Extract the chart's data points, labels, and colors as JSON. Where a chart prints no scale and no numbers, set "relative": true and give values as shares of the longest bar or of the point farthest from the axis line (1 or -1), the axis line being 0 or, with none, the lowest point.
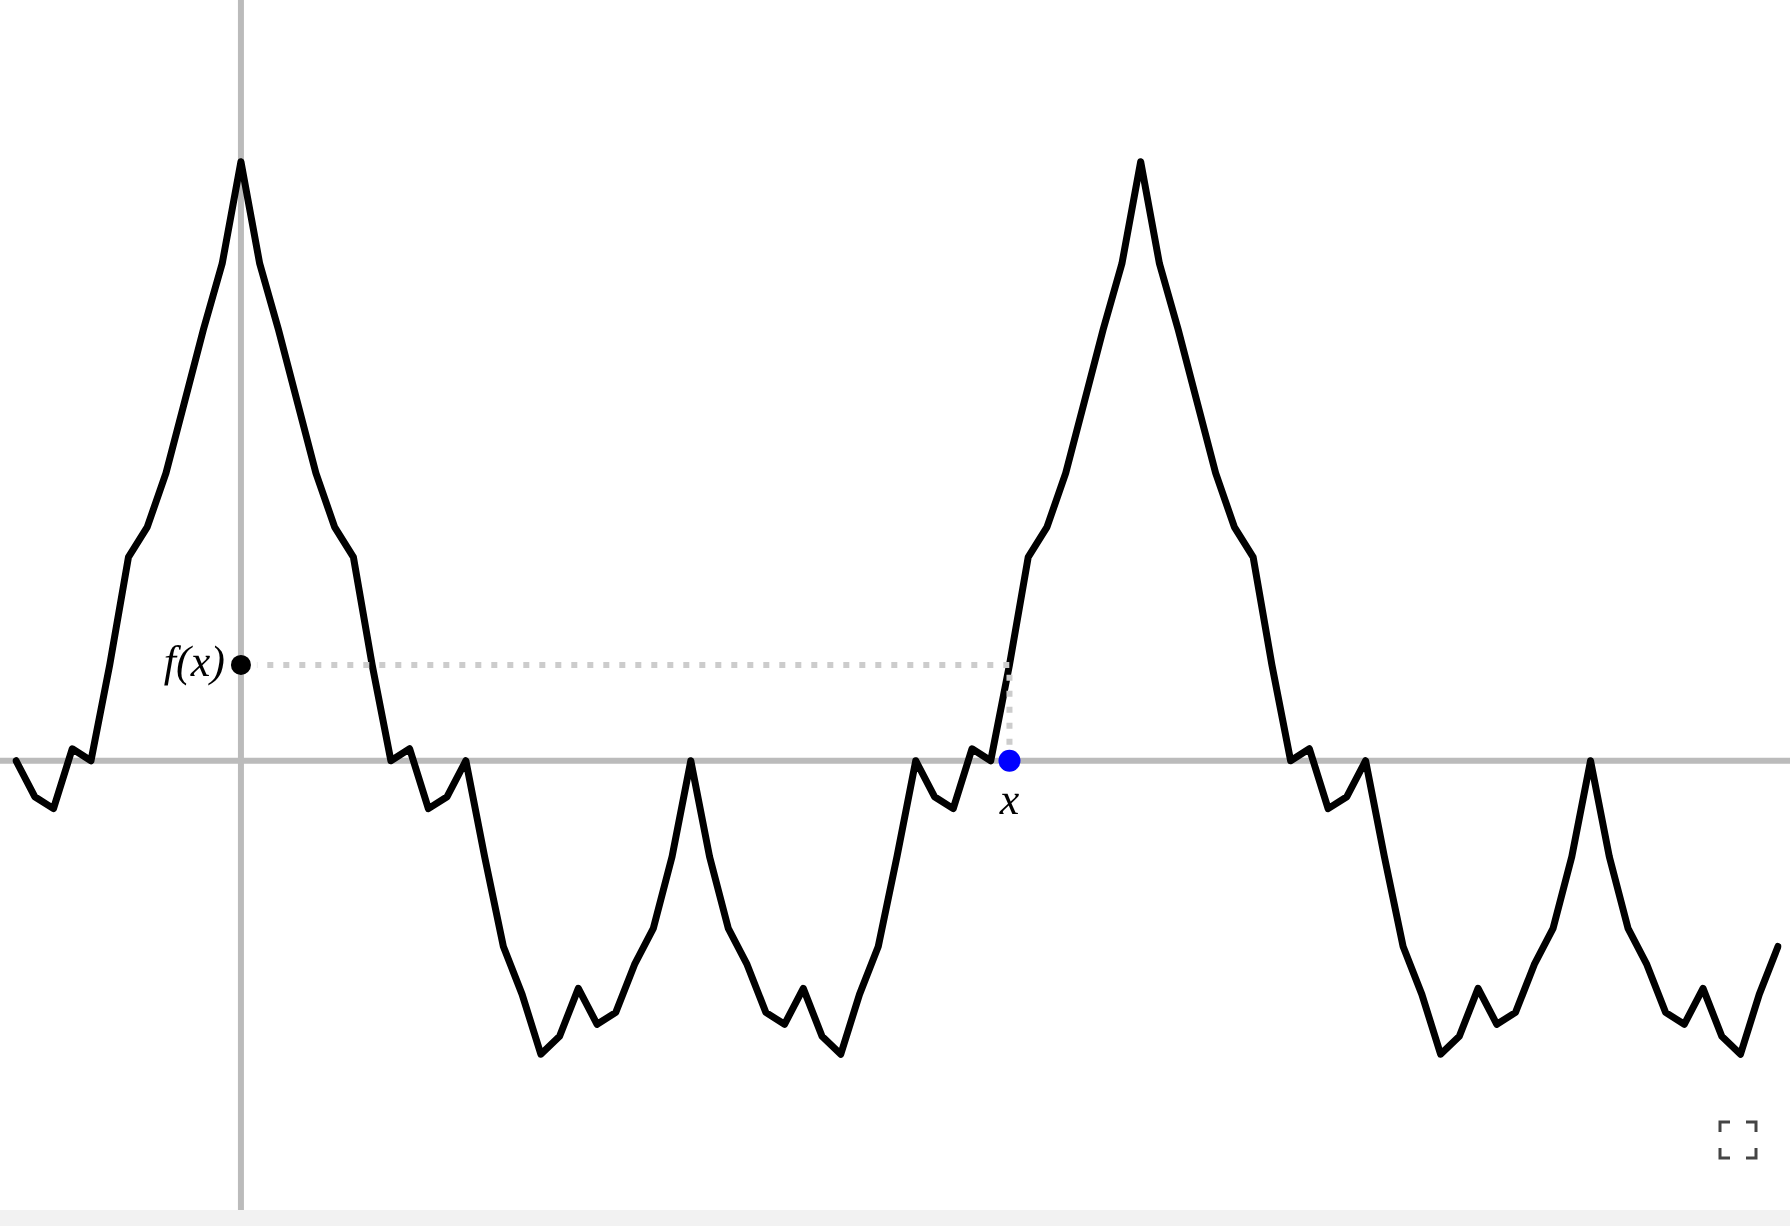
{
  "chart_data": {
    "type": "line",
    "relative": true,
    "categories": [
      null,
      null,
      null,
      null,
      null,
      null,
      null,
      null,
      null,
      null,
      null,
      null,
      null,
      null,
      null,
      null,
      null,
      null,
      null,
      null,
      null,
      null,
      null,
      null,
      null,
      null,
      null,
      null,
      null,
      null,
      null,
      null,
      null,
      null,
      null,
      null,
      null,
      null,
      null,
      null,
      null,
      null,
      null,
      null,
      null,
      null,
      null,
      null,
      null,
      null,
      null,
      null,
      null,
      null,
      null,
      null,
      null,
      null,
      null,
      null,
      null,
      null,
      null,
      null,
      null,
      null,
      null,
      null,
      null,
      null,
      null,
      null,
      null,
      null,
      null,
      null,
      null,
      null,
      null,
      null,
      null,
      null,
      null,
      null,
      null,
      null,
      null,
      null,
      null,
      null,
      null,
      null,
      null,
      null,
      null
    ],
    "annotations": [
      "f(x)",
      "x"
    ],
    "series": [
      {
        "color": "#000000",
        "marker": "none",
        "line_style": "solid",
        "values": [
          0,
          -0.06,
          -0.08,
          0.02,
          0,
          0.16,
          0.34,
          0.39,
          0.48,
          0.6,
          0.72,
          0.83,
          1,
          0.83,
          0.72,
          0.6,
          0.48,
          0.39,
          0.34,
          0.16,
          0,
          0.02,
          -0.08,
          -0.06,
          0,
          -0.16,
          -0.31,
          -0.39,
          -0.49,
          -0.46,
          -0.38,
          -0.44,
          -0.42,
          -0.34,
          -0.28,
          -0.16,
          0,
          -0.16,
          -0.28,
          -0.34,
          -0.42,
          -0.44,
          -0.38,
          -0.46,
          -0.49,
          -0.39,
          -0.31,
          -0.16,
          0,
          -0.06,
          -0.08,
          0.02,
          0,
          0.16,
          0.34,
          0.39,
          0.48,
          0.6,
          0.72,
          0.83,
          1,
          0.83,
          0.72,
          0.6,
          0.48,
          0.39,
          0.34,
          0.16,
          0,
          0.02,
          -0.08,
          -0.06,
          0,
          -0.16,
          -0.31,
          -0.39,
          -0.49,
          -0.46,
          -0.38,
          -0.44,
          -0.42,
          -0.34,
          -0.28,
          -0.16,
          0,
          -0.16,
          -0.28,
          -0.34,
          -0.42,
          -0.44,
          -0.38,
          -0.46,
          -0.49,
          -0.39,
          -0.31
        ]
      }
    ]
  }
}
